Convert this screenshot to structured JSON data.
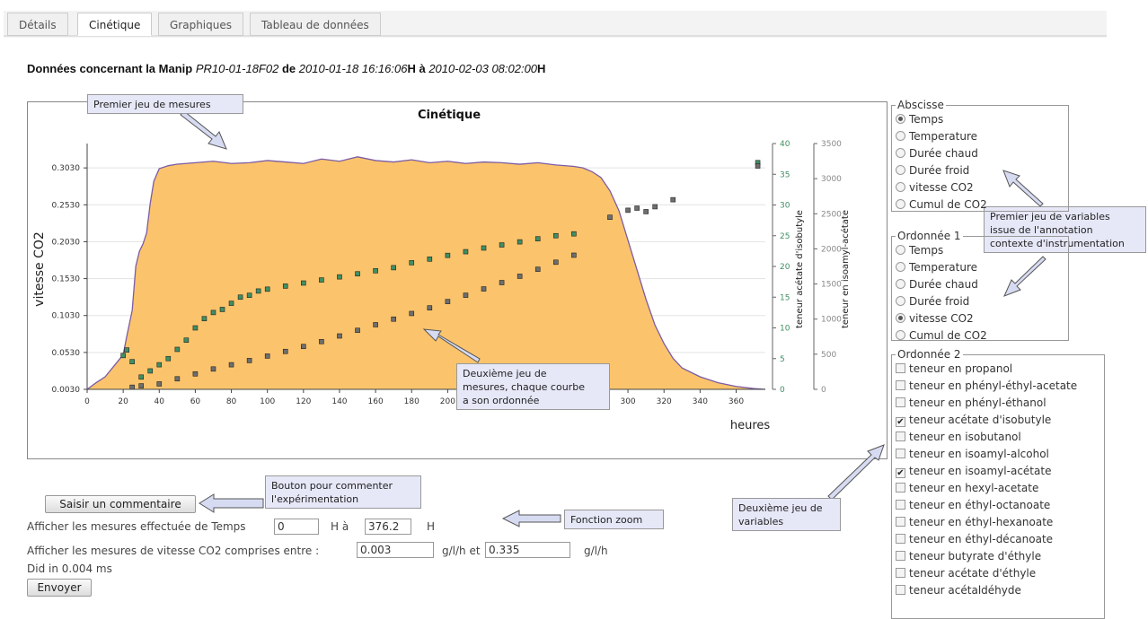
{
  "tabs": {
    "items": [
      "Détails",
      "Cinétique",
      "Graphiques",
      "Tableau de données"
    ],
    "active": 1
  },
  "heading": {
    "lead": "Données concernant la Manip",
    "manip": "PR10-01-18F02",
    "de": "de",
    "start": "2010-01-18 16:16:06",
    "a": "H à",
    "end": "2010-02-03 08:02:00",
    "h": "H"
  },
  "chart_data": {
    "type": "area",
    "title": "Cinétique",
    "xlabel": "heures",
    "xlim": [
      0,
      376.2
    ],
    "xticks": [
      0,
      20,
      40,
      60,
      80,
      100,
      120,
      140,
      160,
      180,
      200,
      220,
      240,
      260,
      280,
      300,
      320,
      340,
      360
    ],
    "ylim": [
      0.003,
      0.336
    ],
    "yticks": [
      {
        "value": 0.003,
        "label": "0.0030"
      },
      {
        "value": 0.053,
        "label": "0.0530"
      },
      {
        "value": 0.103,
        "label": "0.1030"
      },
      {
        "value": 0.153,
        "label": "0.1530"
      },
      {
        "value": 0.203,
        "label": "0.2030"
      },
      {
        "value": 0.253,
        "label": "0.2530"
      },
      {
        "value": 0.303,
        "label": "0.3030"
      }
    ],
    "y2lim": [
      0,
      40
    ],
    "y2ticks": [
      0,
      5,
      10,
      15,
      20,
      25,
      30,
      35,
      40
    ],
    "y3lim": [
      0,
      3500
    ],
    "y3ticks": [
      0,
      500,
      1000,
      1500,
      2000,
      2500,
      3000,
      3500
    ],
    "grid": true,
    "series": [
      {
        "name": "vitesse CO2",
        "type": "area",
        "axis": "y",
        "color": "#fbc46c",
        "line_color": "#7b5ca6",
        "x": [
          0,
          5,
          10,
          15,
          20,
          22,
          25,
          27,
          29,
          31,
          33,
          35,
          37,
          40,
          45,
          50,
          60,
          70,
          80,
          90,
          100,
          110,
          120,
          130,
          140,
          150,
          160,
          170,
          180,
          190,
          200,
          210,
          220,
          230,
          240,
          250,
          260,
          270,
          275,
          280,
          285,
          290,
          295,
          300,
          305,
          310,
          315,
          320,
          325,
          330,
          340,
          350,
          360,
          370,
          376.2
        ],
        "values": [
          0.003,
          0.012,
          0.02,
          0.035,
          0.05,
          0.075,
          0.11,
          0.17,
          0.19,
          0.2,
          0.215,
          0.255,
          0.285,
          0.302,
          0.306,
          0.308,
          0.31,
          0.312,
          0.309,
          0.31,
          0.313,
          0.311,
          0.309,
          0.315,
          0.312,
          0.318,
          0.313,
          0.311,
          0.314,
          0.31,
          0.312,
          0.309,
          0.311,
          0.31,
          0.308,
          0.31,
          0.307,
          0.305,
          0.303,
          0.298,
          0.29,
          0.272,
          0.245,
          0.205,
          0.165,
          0.125,
          0.09,
          0.065,
          0.045,
          0.032,
          0.02,
          0.012,
          0.007,
          0.004,
          0.003
        ]
      },
      {
        "name": "teneur acétate d'isobutyle",
        "type": "scatter",
        "axis": "y2",
        "color": "#3f8f63",
        "x": [
          20,
          22,
          25,
          30,
          35,
          40,
          45,
          50,
          55,
          60,
          65,
          70,
          75,
          80,
          85,
          90,
          95,
          100,
          110,
          120,
          130,
          140,
          150,
          160,
          170,
          180,
          190,
          200,
          210,
          220,
          230,
          240,
          250,
          260,
          270,
          372
        ],
        "values": [
          5.5,
          6.4,
          4.5,
          2,
          3,
          4,
          5,
          6.5,
          8,
          10,
          11.5,
          12.5,
          13,
          14,
          15,
          15.3,
          16,
          16.3,
          16.8,
          17.3,
          17.8,
          18.3,
          18.8,
          19.3,
          19.8,
          20.6,
          21.2,
          21.8,
          22.4,
          23,
          23.5,
          24,
          24.5,
          25,
          25.3,
          36.9
        ]
      },
      {
        "name": "teneur en isoamyl-acétate",
        "type": "scatter",
        "axis": "y3",
        "color": "#6e6e6e",
        "x": [
          25,
          30,
          40,
          50,
          60,
          70,
          80,
          90,
          100,
          110,
          120,
          130,
          140,
          150,
          160,
          170,
          180,
          190,
          200,
          210,
          220,
          230,
          240,
          250,
          260,
          270,
          290,
          300,
          305,
          310,
          315,
          325,
          372
        ],
        "values": [
          30,
          50,
          77,
          150,
          220,
          290,
          350,
          410,
          474,
          540,
          610,
          680,
          760,
          840,
          920,
          1000,
          1080,
          1160,
          1250,
          1340,
          1430,
          1520,
          1610,
          1710,
          1810,
          1910,
          2450,
          2550,
          2580,
          2530,
          2600,
          2700,
          3180
        ]
      }
    ]
  },
  "abscisse": {
    "legend": "Abscisse",
    "options": [
      "Temps",
      "Temperature",
      "Durée chaud",
      "Durée froid",
      "vitesse CO2",
      "Cumul de CO2"
    ],
    "selected": 0
  },
  "ordonnee1": {
    "legend": "Ordonnée 1",
    "options": [
      "Temps",
      "Temperature",
      "Durée chaud",
      "Durée froid",
      "vitesse CO2",
      "Cumul de CO2"
    ],
    "selected": 4
  },
  "ordonnee2": {
    "legend": "Ordonnée 2",
    "options": [
      "teneur en propanol",
      "teneur en phényl-éthyl-acetate",
      "teneur en phényl-éthanol",
      "teneur acétate d'isobutyle",
      "teneur en isobutanol",
      "teneur en isoamyl-alcohol",
      "teneur en isoamyl-acétate",
      "teneur en hexyl-acetate",
      "teneur en éthyl-octanoate",
      "teneur en éthyl-hexanoate",
      "teneur en éthyl-décanoate",
      "teneur butyrate d'éthyle",
      "teneur acétate d'éthyle",
      "teneur acétaldéhyde"
    ],
    "checked": [
      3,
      6
    ]
  },
  "form": {
    "comment_button": "Saisir un commentaire",
    "time_label": "Afficher les mesures effectuée de Temps",
    "time_from": "0",
    "time_mid": "H à",
    "time_to": "376.2",
    "time_unit": "H",
    "range_label": "Afficher les mesures de vitesse CO2 comprises entre :",
    "range_from": "0.003",
    "range_mid": "g/l/h et",
    "range_to": "0.335",
    "range_unit": "g/l/h",
    "status": "Did in 0.004 ms",
    "submit_button": "Envoyer"
  },
  "annotations": [
    {
      "lines": [
        "Premier jeu de mesures"
      ]
    },
    {
      "lines": [
        "Premier jeu de variables",
        "issue de l'annotation",
        "contexte d'instrumentation"
      ]
    },
    {
      "lines": [
        "Deuxième jeu de",
        "mesures, chaque courbe",
        "a son ordonnée"
      ]
    },
    {
      "lines": [
        "Bouton pour commenter",
        "l'expérimentation"
      ]
    },
    {
      "lines": [
        "Fonction zoom"
      ]
    },
    {
      "lines": [
        "Deuxième jeu de",
        "variables"
      ]
    }
  ]
}
